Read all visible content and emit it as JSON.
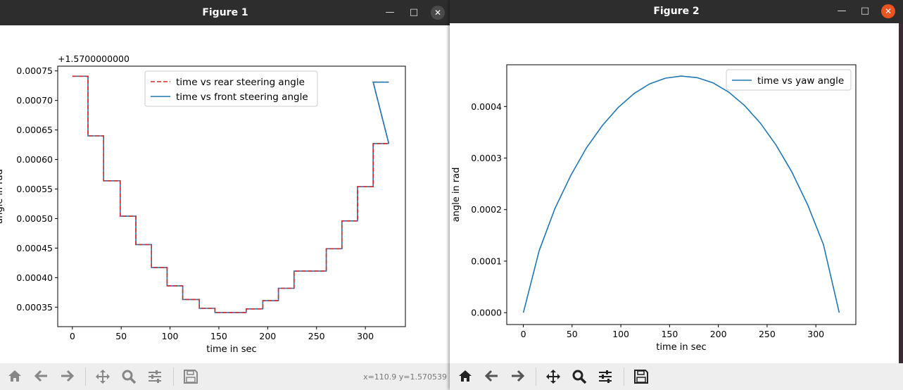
{
  "figure1": {
    "title": "Figure 1",
    "coords": "x=110.9 y=1.570539",
    "chart_data": {
      "type": "line",
      "title": "",
      "xlabel": "time in sec",
      "ylabel": "angle in rad",
      "offset_label": "+1.5700000000",
      "xlim": [
        -15,
        341
      ],
      "ylim": [
        0.000317,
        0.000758
      ],
      "xticks": [
        0,
        50,
        100,
        150,
        200,
        250,
        300
      ],
      "xtick_labels": [
        "0",
        "50",
        "100",
        "150",
        "200",
        "250",
        "300"
      ],
      "yticks": [
        0.00035,
        0.0004,
        0.00045,
        0.0005,
        0.00055,
        0.0006,
        0.00065,
        0.0007,
        0.00075
      ],
      "ytick_labels": [
        "0.00035",
        "0.00040",
        "0.00045",
        "0.00050",
        "0.00055",
        "0.00060",
        "0.00065",
        "0.00070",
        "0.00075"
      ],
      "legend_position": "top-center",
      "series": [
        {
          "name": "time vs rear steering angle",
          "color": "#d62728",
          "style": "dashed",
          "x": [
            0,
            16,
            16,
            32,
            32,
            49,
            49,
            65,
            65,
            81,
            81,
            97,
            97,
            113,
            113,
            130,
            130,
            146,
            146,
            178,
            178,
            195,
            195,
            211,
            211,
            227,
            227,
            260,
            260,
            276,
            276,
            292,
            292,
            308,
            308,
            324
          ],
          "y": [
            0.000741,
            0.000741,
            0.00064,
            0.00064,
            0.000564,
            0.000564,
            0.000504,
            0.000504,
            0.000456,
            0.000456,
            0.000417,
            0.000417,
            0.000386,
            0.000386,
            0.000363,
            0.000363,
            0.000348,
            0.000348,
            0.000341,
            0.000341,
            0.000347,
            0.000347,
            0.000361,
            0.000361,
            0.000382,
            0.000382,
            0.000411,
            0.000411,
            0.000449,
            0.000449,
            0.000496,
            0.000496,
            0.000554,
            0.000554,
            0.000627,
            0.000627
          ]
        },
        {
          "name": "time vs front steering angle",
          "color": "#1f77b4",
          "style": "solid",
          "x": [
            0,
            16,
            16,
            32,
            32,
            49,
            49,
            65,
            65,
            81,
            81,
            97,
            97,
            113,
            113,
            130,
            130,
            146,
            146,
            178,
            178,
            195,
            195,
            211,
            211,
            227,
            227,
            260,
            260,
            276,
            276,
            292,
            292,
            308,
            308,
            324
          ],
          "y": [
            0.000741,
            0.000741,
            0.00064,
            0.00064,
            0.000564,
            0.000564,
            0.000504,
            0.000504,
            0.000456,
            0.000456,
            0.000417,
            0.000417,
            0.000386,
            0.000386,
            0.000363,
            0.000363,
            0.000348,
            0.000348,
            0.000341,
            0.000341,
            0.000347,
            0.000347,
            0.000361,
            0.000361,
            0.000382,
            0.000382,
            0.000411,
            0.000411,
            0.000449,
            0.000449,
            0.000496,
            0.000496,
            0.000554,
            0.000554,
            0.000627,
            0.000627
          ]
        }
      ],
      "tail": {
        "x": [
          308,
          324
        ],
        "y": [
          0.000731,
          0.000731
        ]
      }
    }
  },
  "figure2": {
    "title": "Figure 2",
    "chart_data": {
      "type": "line",
      "title": "",
      "xlabel": "time in sec",
      "ylabel": "angle in rad",
      "xlim": [
        -17,
        341
      ],
      "ylim": [
        -2.3e-05,
        0.000481
      ],
      "xticks": [
        0,
        50,
        100,
        150,
        200,
        250,
        300
      ],
      "xtick_labels": [
        "0",
        "50",
        "100",
        "150",
        "200",
        "250",
        "300"
      ],
      "yticks": [
        0,
        0.0001,
        0.0002,
        0.0003,
        0.0004
      ],
      "ytick_labels": [
        "0.0000",
        "0.0001",
        "0.0002",
        "0.0003",
        "0.0004"
      ],
      "legend_position": "top-right",
      "series": [
        {
          "name": "time vs yaw angle",
          "color": "#1f77b4",
          "x": [
            0,
            16.2,
            32.4,
            48.6,
            64.8,
            81,
            97.2,
            113.4,
            129.6,
            145.8,
            162,
            178.2,
            194.4,
            210.6,
            226.8,
            243,
            259.2,
            275.4,
            291.6,
            307.8,
            324
          ],
          "y": [
            0,
            0.00012,
            0.000202,
            0.000266,
            0.00032,
            0.000363,
            0.000398,
            0.000425,
            0.000444,
            0.000455,
            0.000459,
            0.000456,
            0.000446,
            0.000428,
            0.000402,
            0.000368,
            0.000325,
            0.000273,
            0.000209,
            0.000132,
            0
          ]
        }
      ]
    }
  },
  "toolbar": {
    "home_icon": "home-icon",
    "back_icon": "back-arrow-icon",
    "forward_icon": "forward-arrow-icon",
    "pan_icon": "pan-move-icon",
    "zoom_icon": "zoom-magnifier-icon",
    "configure_icon": "configure-subplots-icon",
    "save_icon": "save-floppy-icon"
  }
}
